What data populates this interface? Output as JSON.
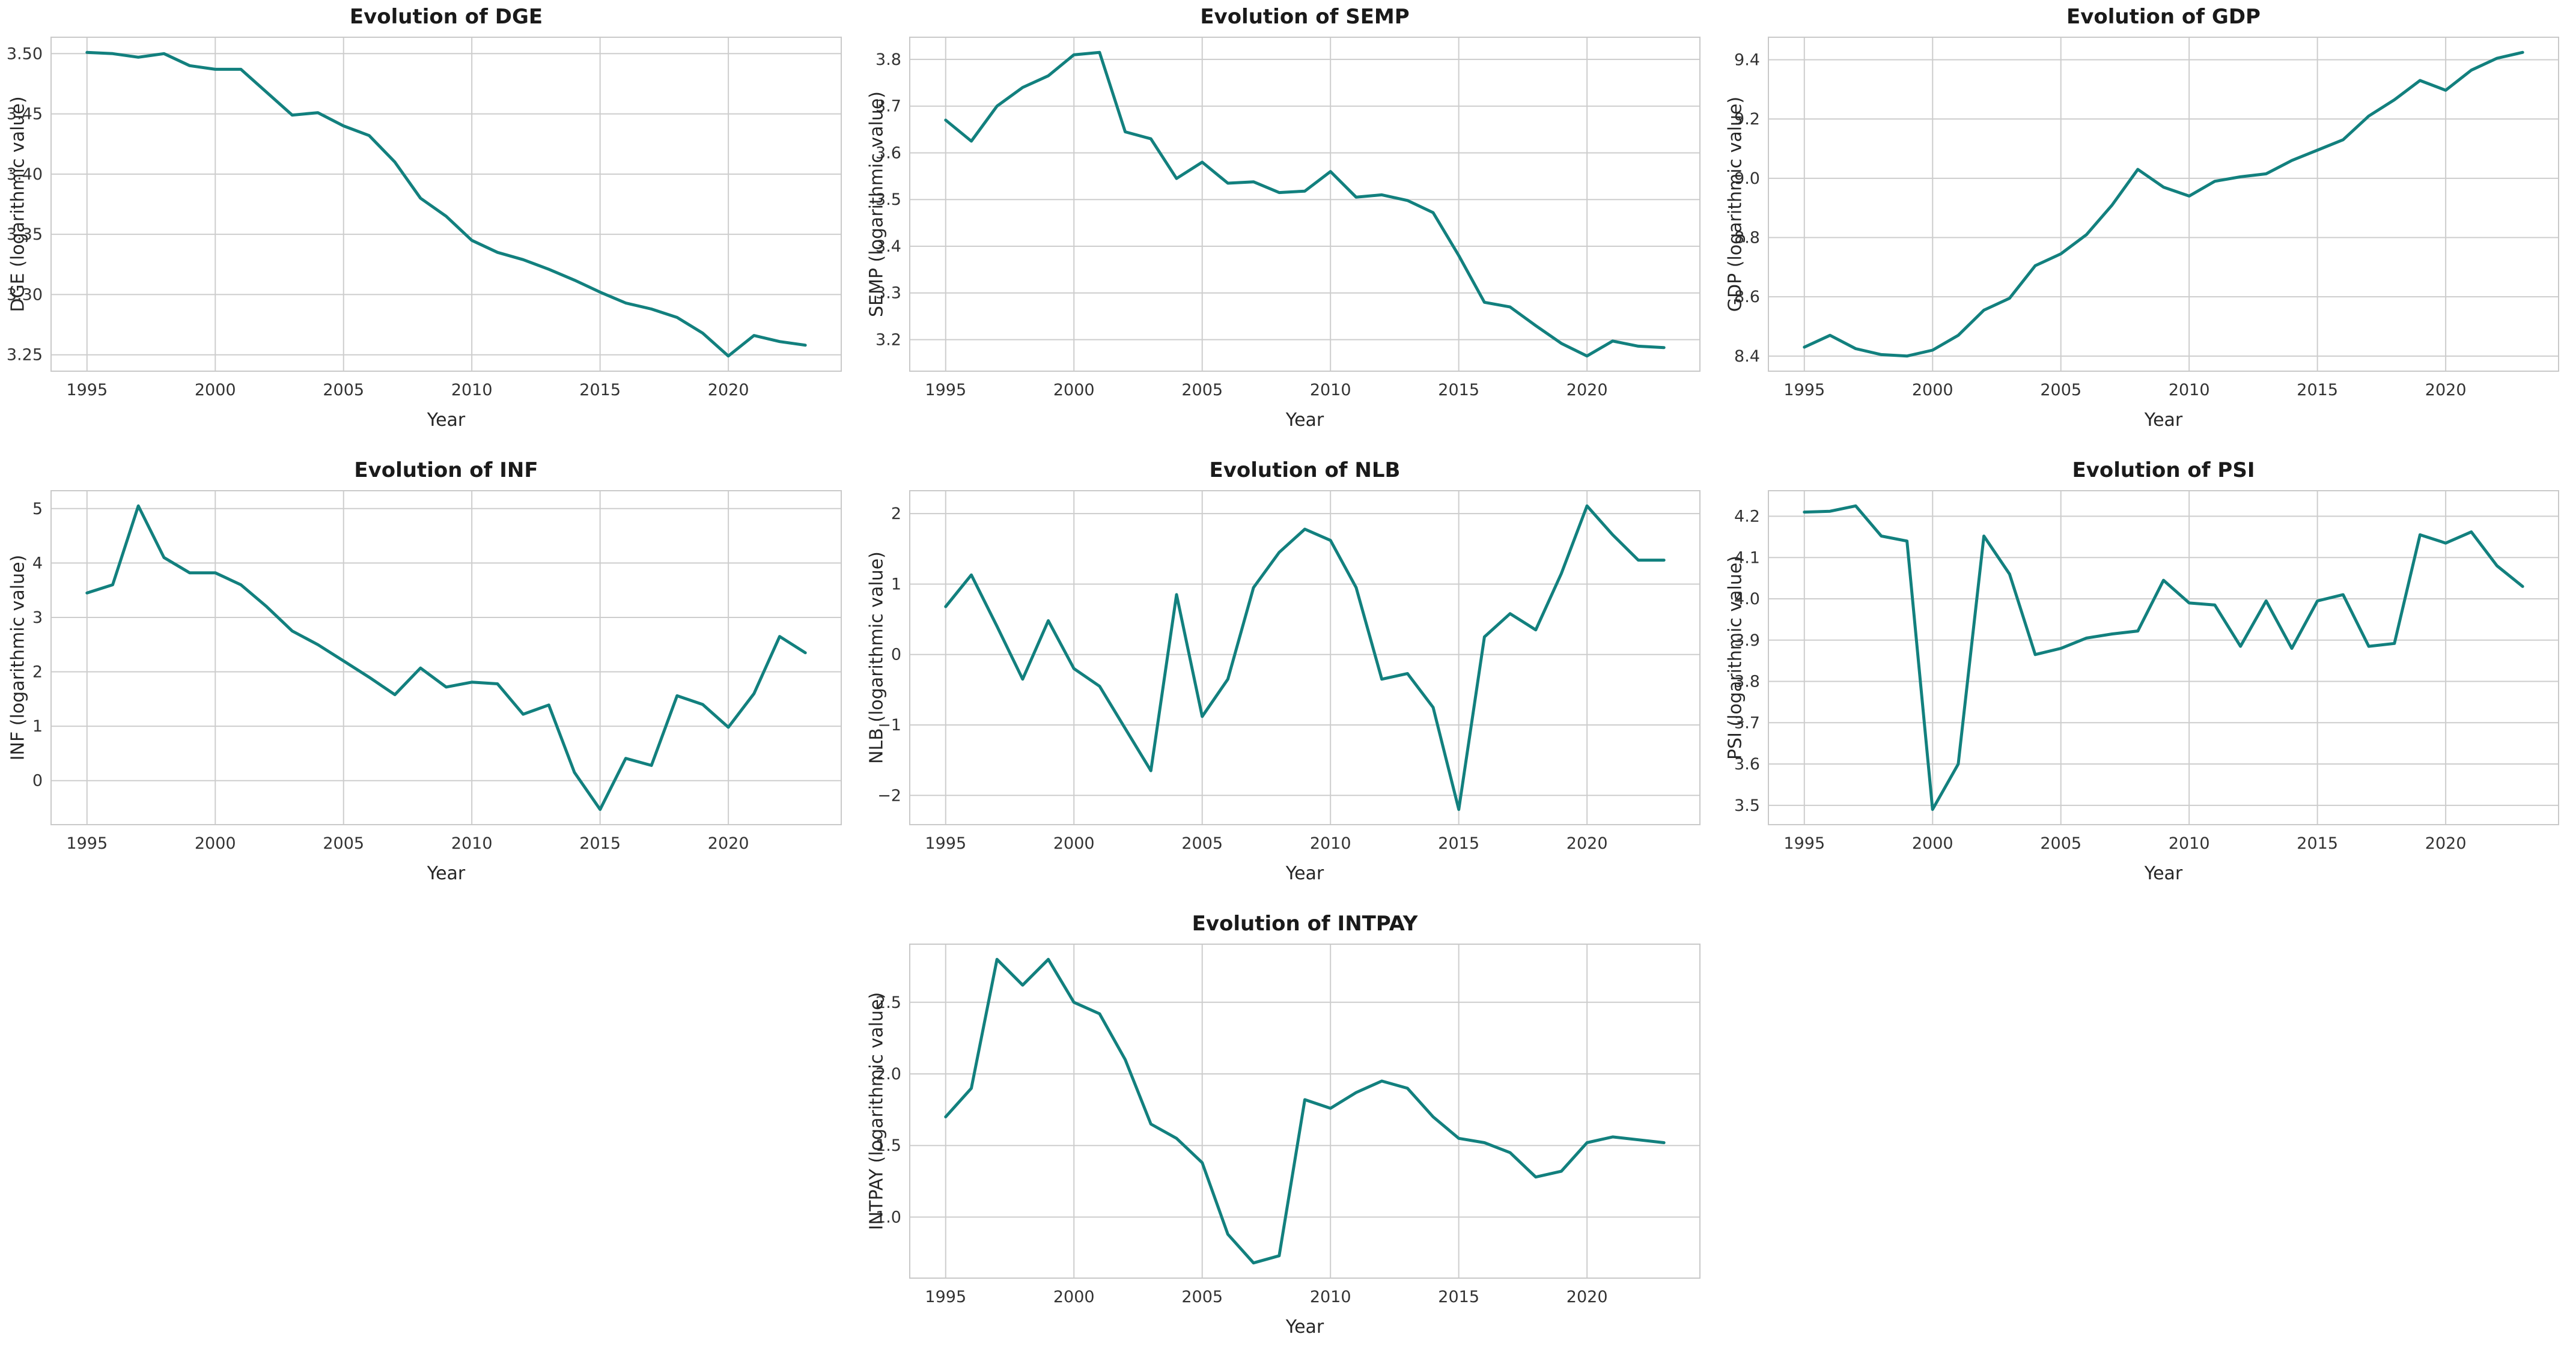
{
  "page": {
    "background": "#ffffff"
  },
  "style": {
    "line_color": "#12807e",
    "grid_color": "#cdcdcd",
    "spine_color": "#c9c9c9",
    "plot_background": "#ffffff",
    "title_color": "#1a1a1a",
    "text_color": "#333333",
    "line_width": 5
  },
  "chart_data": [
    {
      "type": "line",
      "title": "Evolution of DGE",
      "xlabel": "Year",
      "ylabel": "DGE (logarithmic value)",
      "grid": true,
      "legend": null,
      "x": [
        1995,
        1996,
        1997,
        1998,
        1999,
        2000,
        2001,
        2002,
        2003,
        2004,
        2005,
        2006,
        2007,
        2008,
        2009,
        2010,
        2011,
        2012,
        2013,
        2014,
        2015,
        2016,
        2017,
        2018,
        2019,
        2020,
        2021,
        2022,
        2023
      ],
      "values": [
        3.501,
        3.5,
        3.497,
        3.5,
        3.49,
        3.487,
        3.487,
        3.468,
        3.449,
        3.451,
        3.44,
        3.432,
        3.41,
        3.38,
        3.365,
        3.345,
        3.335,
        3.329,
        3.321,
        3.312,
        3.302,
        3.293,
        3.288,
        3.281,
        3.268,
        3.249,
        3.266,
        3.261,
        3.258
      ],
      "xlim": [
        1993.6,
        2024.4
      ],
      "ylim": [
        3.2364,
        3.5136
      ],
      "xticks": [
        1995,
        2000,
        2005,
        2010,
        2015,
        2020
      ],
      "xtick_labels": [
        "1995",
        "2000",
        "2005",
        "2010",
        "2015",
        "2020"
      ],
      "yticks": [
        3.25,
        3.3,
        3.35,
        3.4,
        3.45,
        3.5
      ],
      "ytick_labels": [
        "3.25",
        "3.30",
        "3.35",
        "3.40",
        "3.45",
        "3.50"
      ]
    },
    {
      "type": "line",
      "title": "Evolution of SEMP",
      "xlabel": "Year",
      "ylabel": "SEMP (logarithmic value)",
      "grid": true,
      "legend": null,
      "x": [
        1995,
        1996,
        1997,
        1998,
        1999,
        2000,
        2001,
        2002,
        2003,
        2004,
        2005,
        2006,
        2007,
        2008,
        2009,
        2010,
        2011,
        2012,
        2013,
        2014,
        2015,
        2016,
        2017,
        2018,
        2019,
        2020,
        2021,
        2022,
        2023
      ],
      "values": [
        3.67,
        3.625,
        3.7,
        3.74,
        3.765,
        3.81,
        3.815,
        3.645,
        3.63,
        3.545,
        3.58,
        3.535,
        3.538,
        3.515,
        3.518,
        3.56,
        3.505,
        3.51,
        3.498,
        3.472,
        3.38,
        3.28,
        3.27,
        3.23,
        3.192,
        3.165,
        3.197,
        3.186,
        3.183
      ],
      "xlim": [
        1993.6,
        2024.4
      ],
      "ylim": [
        3.1325,
        3.8475
      ],
      "xticks": [
        1995,
        2000,
        2005,
        2010,
        2015,
        2020
      ],
      "xtick_labels": [
        "1995",
        "2000",
        "2005",
        "2010",
        "2015",
        "2020"
      ],
      "yticks": [
        3.2,
        3.3,
        3.4,
        3.5,
        3.6,
        3.7,
        3.8
      ],
      "ytick_labels": [
        "3.2",
        "3.3",
        "3.4",
        "3.5",
        "3.6",
        "3.7",
        "3.8"
      ]
    },
    {
      "type": "line",
      "title": "Evolution of GDP",
      "xlabel": "Year",
      "ylabel": "GDP (logarithmic value)",
      "grid": true,
      "legend": null,
      "x": [
        1995,
        1996,
        1997,
        1998,
        1999,
        2000,
        2001,
        2002,
        2003,
        2004,
        2005,
        2006,
        2007,
        2008,
        2009,
        2010,
        2011,
        2012,
        2013,
        2014,
        2015,
        2016,
        2017,
        2018,
        2019,
        2020,
        2021,
        2022,
        2023
      ],
      "values": [
        8.43,
        8.47,
        8.425,
        8.405,
        8.4,
        8.42,
        8.47,
        8.555,
        8.595,
        8.705,
        8.745,
        8.81,
        8.91,
        9.03,
        8.97,
        8.94,
        8.99,
        9.005,
        9.015,
        9.06,
        9.095,
        9.13,
        9.21,
        9.265,
        9.33,
        9.297,
        9.365,
        9.405,
        9.425
      ],
      "xlim": [
        1993.6,
        2024.4
      ],
      "ylim": [
        8.349,
        9.476
      ],
      "xticks": [
        1995,
        2000,
        2005,
        2010,
        2015,
        2020
      ],
      "xtick_labels": [
        "1995",
        "2000",
        "2005",
        "2010",
        "2015",
        "2020"
      ],
      "yticks": [
        8.4,
        8.6,
        8.8,
        9.0,
        9.2,
        9.4
      ],
      "ytick_labels": [
        "8.4",
        "8.6",
        "8.8",
        "9.0",
        "9.2",
        "9.4"
      ]
    },
    {
      "type": "line",
      "title": "Evolution of INF",
      "xlabel": "Year",
      "ylabel": "INF (logarithmic value)",
      "grid": true,
      "legend": null,
      "x": [
        1995,
        1996,
        1997,
        1998,
        1999,
        2000,
        2001,
        2002,
        2003,
        2004,
        2005,
        2006,
        2007,
        2008,
        2009,
        2010,
        2011,
        2012,
        2013,
        2014,
        2015,
        2016,
        2017,
        2018,
        2019,
        2020,
        2021,
        2022,
        2023
      ],
      "values": [
        3.45,
        3.6,
        5.05,
        4.1,
        3.82,
        3.82,
        3.6,
        3.2,
        2.75,
        2.5,
        2.2,
        1.9,
        1.58,
        2.07,
        1.72,
        1.81,
        1.78,
        1.22,
        1.39,
        0.15,
        -0.53,
        0.41,
        0.28,
        1.56,
        1.4,
        0.98,
        1.6,
        2.65,
        2.35
      ],
      "xlim": [
        1993.6,
        2024.4
      ],
      "ylim": [
        -0.809,
        5.329
      ],
      "xticks": [
        1995,
        2000,
        2005,
        2010,
        2015,
        2020
      ],
      "xtick_labels": [
        "1995",
        "2000",
        "2005",
        "2010",
        "2015",
        "2020"
      ],
      "yticks": [
        0,
        1,
        2,
        3,
        4,
        5
      ],
      "ytick_labels": [
        "0",
        "1",
        "2",
        "3",
        "4",
        "5"
      ]
    },
    {
      "type": "line",
      "title": "Evolution of NLB",
      "xlabel": "Year",
      "ylabel": "NLB (logarithmic value)",
      "grid": true,
      "legend": null,
      "x": [
        1995,
        1996,
        1997,
        1998,
        1999,
        2000,
        2001,
        2002,
        2003,
        2004,
        2005,
        2006,
        2007,
        2008,
        2009,
        2010,
        2011,
        2012,
        2013,
        2014,
        2015,
        2016,
        2017,
        2018,
        2019,
        2020,
        2021,
        2022,
        2023
      ],
      "values": [
        0.68,
        1.13,
        0.4,
        -0.35,
        0.48,
        -0.2,
        -0.45,
        -1.05,
        -1.65,
        0.85,
        -0.88,
        -0.35,
        0.95,
        1.45,
        1.78,
        1.62,
        0.95,
        -0.35,
        -0.27,
        -0.75,
        -2.2,
        0.25,
        0.58,
        0.35,
        1.15,
        2.11,
        1.7,
        1.34,
        1.34
      ],
      "xlim": [
        1993.6,
        2024.4
      ],
      "ylim": [
        -2.4155,
        2.3255
      ],
      "xticks": [
        1995,
        2000,
        2005,
        2010,
        2015,
        2020
      ],
      "xtick_labels": [
        "1995",
        "2000",
        "2005",
        "2010",
        "2015",
        "2020"
      ],
      "yticks": [
        -2,
        -1,
        0,
        1,
        2
      ],
      "ytick_labels": [
        "−2",
        "−1",
        "0",
        "1",
        "2"
      ]
    },
    {
      "type": "line",
      "title": "Evolution of PSI",
      "xlabel": "Year",
      "ylabel": "PSI (logarithmic value)",
      "grid": true,
      "legend": null,
      "x": [
        1995,
        1996,
        1997,
        1998,
        1999,
        2000,
        2001,
        2002,
        2003,
        2004,
        2005,
        2006,
        2007,
        2008,
        2009,
        2010,
        2011,
        2012,
        2013,
        2014,
        2015,
        2016,
        2017,
        2018,
        2019,
        2020,
        2021,
        2022,
        2023
      ],
      "values": [
        4.21,
        4.212,
        4.225,
        4.152,
        4.14,
        3.49,
        3.6,
        4.152,
        4.06,
        3.865,
        3.88,
        3.905,
        3.915,
        3.922,
        4.045,
        3.99,
        3.985,
        3.885,
        3.995,
        3.88,
        3.995,
        4.01,
        3.885,
        3.892,
        4.155,
        4.135,
        4.162,
        4.08,
        4.03
      ],
      "xlim": [
        1993.6,
        2024.4
      ],
      "ylim": [
        3.4532,
        4.2618
      ],
      "xticks": [
        1995,
        2000,
        2005,
        2010,
        2015,
        2020
      ],
      "xtick_labels": [
        "1995",
        "2000",
        "2005",
        "2010",
        "2015",
        "2020"
      ],
      "yticks": [
        3.5,
        3.6,
        3.7,
        3.8,
        3.9,
        4.0,
        4.1,
        4.2
      ],
      "ytick_labels": [
        "3.5",
        "3.6",
        "3.7",
        "3.8",
        "3.9",
        "4.0",
        "4.1",
        "4.2"
      ]
    },
    {
      "type": "line",
      "title": "Evolution of INTPAY",
      "xlabel": "Year",
      "ylabel": "INTPAY (logarithmic value)",
      "grid": true,
      "legend": null,
      "x": [
        1995,
        1996,
        1997,
        1998,
        1999,
        2000,
        2001,
        2002,
        2003,
        2004,
        2005,
        2006,
        2007,
        2008,
        2009,
        2010,
        2011,
        2012,
        2013,
        2014,
        2015,
        2016,
        2017,
        2018,
        2019,
        2020,
        2021,
        2022,
        2023
      ],
      "values": [
        1.7,
        1.9,
        2.8,
        2.62,
        2.8,
        2.5,
        2.42,
        2.1,
        1.65,
        1.55,
        1.38,
        0.88,
        0.68,
        0.73,
        1.82,
        1.76,
        1.87,
        1.95,
        1.9,
        1.7,
        1.55,
        1.52,
        1.45,
        1.28,
        1.32,
        1.52,
        1.56,
        1.54,
        1.52
      ],
      "xlim": [
        1993.6,
        2024.4
      ],
      "ylim": [
        0.574,
        2.906
      ],
      "xticks": [
        1995,
        2000,
        2005,
        2010,
        2015,
        2020
      ],
      "xtick_labels": [
        "1995",
        "2000",
        "2005",
        "2010",
        "2015",
        "2020"
      ],
      "yticks": [
        1.0,
        1.5,
        2.0,
        2.5
      ],
      "ytick_labels": [
        "1.0",
        "1.5",
        "2.0",
        "2.5"
      ]
    }
  ]
}
